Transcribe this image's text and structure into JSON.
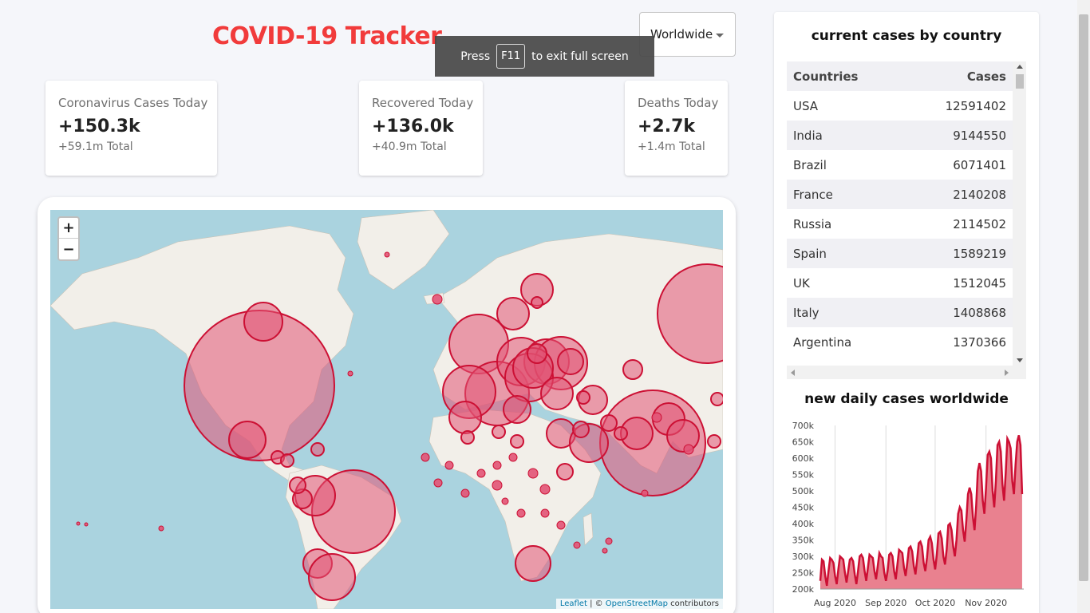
{
  "header": {
    "title": "COVID-19 Tracker"
  },
  "country_select": {
    "value": "Worldwide"
  },
  "fullscreen_toast": {
    "press": "Press",
    "key": "F11",
    "rest": "to exit full screen"
  },
  "stats": [
    {
      "label": "Coronavirus Cases Today",
      "value": "+150.3k",
      "total": "+59.1m Total"
    },
    {
      "label": "Recovered Today",
      "value": "+136.0k",
      "total": "+40.9m Total"
    },
    {
      "label": "Deaths Today",
      "value": "+2.7k",
      "total": "+1.4m Total"
    }
  ],
  "map": {
    "zoom_in": "+",
    "zoom_out": "−",
    "attribution": {
      "leaflet": "Leaflet",
      "sep": " | © ",
      "osm": "OpenStreetMap",
      "tail": " contributors"
    },
    "colors": {
      "water": "#aad3df",
      "land": "#f2efe9",
      "circle_fill": "#e25375",
      "circle_stroke": "#cc1034"
    }
  },
  "sidebar": {
    "table_title": "current cases by country",
    "table_headers": [
      "Countries",
      "Cases"
    ],
    "table_rows": [
      [
        "USA",
        "12591402"
      ],
      [
        "India",
        "9144550"
      ],
      [
        "Brazil",
        "6071401"
      ],
      [
        "France",
        "2140208"
      ],
      [
        "Russia",
        "2114502"
      ],
      [
        "Spain",
        "1589219"
      ],
      [
        "UK",
        "1512045"
      ],
      [
        "Italy",
        "1408868"
      ],
      [
        "Argentina",
        "1370366"
      ]
    ],
    "chart_title": "new daily cases worldwide"
  },
  "chart_data": {
    "type": "area",
    "title": "new daily cases worldwide",
    "xlabel": "",
    "ylabel": "",
    "x_tick_labels": [
      "Aug 2020",
      "Sep 2020",
      "Oct 2020",
      "Nov 2020"
    ],
    "y_tick_labels": [
      "200k",
      "250k",
      "300k",
      "350k",
      "400k",
      "450k",
      "500k",
      "550k",
      "600k",
      "650k",
      "700k"
    ],
    "ylim": [
      200000,
      700000
    ],
    "x_days_span": [
      0,
      124
    ],
    "x_tick_days": [
      9,
      40,
      70,
      101
    ],
    "grid": "vertical",
    "color": "#cc1034",
    "fill": "#e9818f",
    "values": [
      225000,
      290000,
      285000,
      240000,
      210000,
      255000,
      295000,
      290000,
      280000,
      240000,
      215000,
      260000,
      300000,
      295000,
      290000,
      250000,
      220000,
      255000,
      290000,
      295000,
      285000,
      245000,
      215000,
      255000,
      300000,
      305000,
      295000,
      255000,
      225000,
      265000,
      305000,
      300000,
      295000,
      255000,
      230000,
      270000,
      310000,
      300000,
      295000,
      250000,
      225000,
      255000,
      305000,
      310000,
      300000,
      255000,
      230000,
      275000,
      320000,
      315000,
      310000,
      265000,
      240000,
      280000,
      325000,
      330000,
      315000,
      270000,
      245000,
      290000,
      340000,
      345000,
      330000,
      280000,
      255000,
      295000,
      350000,
      360000,
      340000,
      290000,
      260000,
      305000,
      370000,
      375000,
      355000,
      300000,
      275000,
      320000,
      395000,
      400000,
      380000,
      330000,
      300000,
      350000,
      430000,
      450000,
      440000,
      380000,
      345000,
      410000,
      490000,
      510000,
      490000,
      420000,
      380000,
      455000,
      560000,
      585000,
      560000,
      470000,
      430000,
      510000,
      610000,
      620000,
      600000,
      500000,
      450000,
      530000,
      640000,
      650000,
      620000,
      520000,
      470000,
      555000,
      660000,
      650000,
      630000,
      530000,
      490000,
      580000,
      650000,
      670000,
      640000,
      490000
    ]
  }
}
